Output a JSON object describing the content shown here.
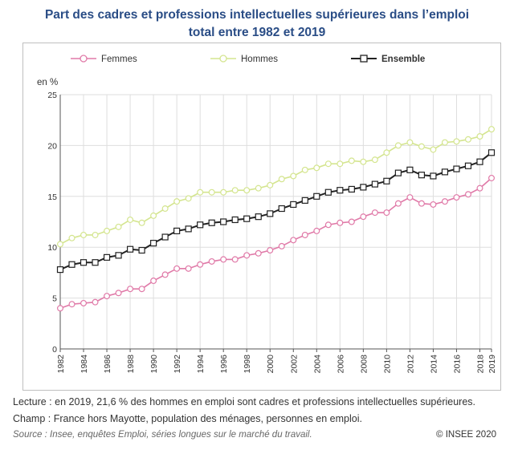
{
  "title_line1": "Part des cadres et professions intellectuelles supérieures dans l’emploi",
  "title_line2": "total entre 1982 et 2019",
  "footer": {
    "lecture": "Lecture : en 2019, 21,6 % des hommes en emploi sont cadres et professions intellectuelles supérieures.",
    "champ": "Champ : France hors Mayotte, population des ménages, personnes en emploi.",
    "source": "Source : Insee, enquêtes Emploi, séries longues sur le marché du travail.",
    "copyright": "© INSEE 2020"
  },
  "chart_data": {
    "type": "line",
    "title": "Part des cadres et professions intellectuelles supérieures dans l’emploi total entre 1982 et 2019",
    "ylabel": "en %",
    "xlabel": "",
    "ylim": [
      0,
      25
    ],
    "yticks": [
      0,
      5,
      10,
      15,
      20,
      25
    ],
    "xticks": [
      1982,
      1984,
      1986,
      1988,
      1990,
      1992,
      1994,
      1996,
      1998,
      2000,
      2002,
      2004,
      2006,
      2008,
      2010,
      2012,
      2014,
      2016,
      2018,
      2019
    ],
    "grid": true,
    "legend_position": "top",
    "x": [
      1982,
      1983,
      1984,
      1985,
      1986,
      1987,
      1988,
      1989,
      1990,
      1991,
      1992,
      1993,
      1994,
      1995,
      1996,
      1997,
      1998,
      1999,
      2000,
      2001,
      2002,
      2003,
      2004,
      2005,
      2006,
      2007,
      2008,
      2009,
      2010,
      2011,
      2012,
      2013,
      2014,
      2015,
      2016,
      2017,
      2018,
      2019
    ],
    "series": [
      {
        "name": "Femmes",
        "color": "#e07aa8",
        "bold": false,
        "values": [
          4.0,
          4.4,
          4.5,
          4.6,
          5.2,
          5.5,
          5.9,
          5.9,
          6.7,
          7.3,
          7.9,
          7.9,
          8.3,
          8.6,
          8.8,
          8.8,
          9.2,
          9.4,
          9.7,
          10.1,
          10.7,
          11.2,
          11.6,
          12.2,
          12.4,
          12.5,
          13.0,
          13.4,
          13.4,
          14.3,
          14.9,
          14.3,
          14.2,
          14.5,
          14.9,
          15.2,
          15.8,
          16.8
        ]
      },
      {
        "name": "Hommes",
        "color": "#d4e58f",
        "bold": false,
        "values": [
          10.3,
          10.9,
          11.2,
          11.2,
          11.6,
          12.0,
          12.7,
          12.4,
          13.1,
          13.8,
          14.5,
          14.8,
          15.4,
          15.4,
          15.4,
          15.6,
          15.6,
          15.8,
          16.1,
          16.7,
          17.0,
          17.6,
          17.8,
          18.2,
          18.2,
          18.5,
          18.4,
          18.6,
          19.3,
          20.0,
          20.3,
          19.9,
          19.6,
          20.3,
          20.4,
          20.6,
          20.9,
          21.6
        ]
      },
      {
        "name": "Ensemble",
        "color": "#222222",
        "bold": true,
        "values": [
          7.8,
          8.3,
          8.5,
          8.5,
          9.0,
          9.2,
          9.8,
          9.7,
          10.4,
          11.0,
          11.6,
          11.8,
          12.2,
          12.4,
          12.5,
          12.7,
          12.8,
          13.0,
          13.3,
          13.8,
          14.2,
          14.6,
          15.0,
          15.4,
          15.6,
          15.7,
          15.9,
          16.2,
          16.5,
          17.3,
          17.6,
          17.1,
          17.0,
          17.4,
          17.7,
          18.0,
          18.4,
          19.3
        ]
      }
    ]
  }
}
